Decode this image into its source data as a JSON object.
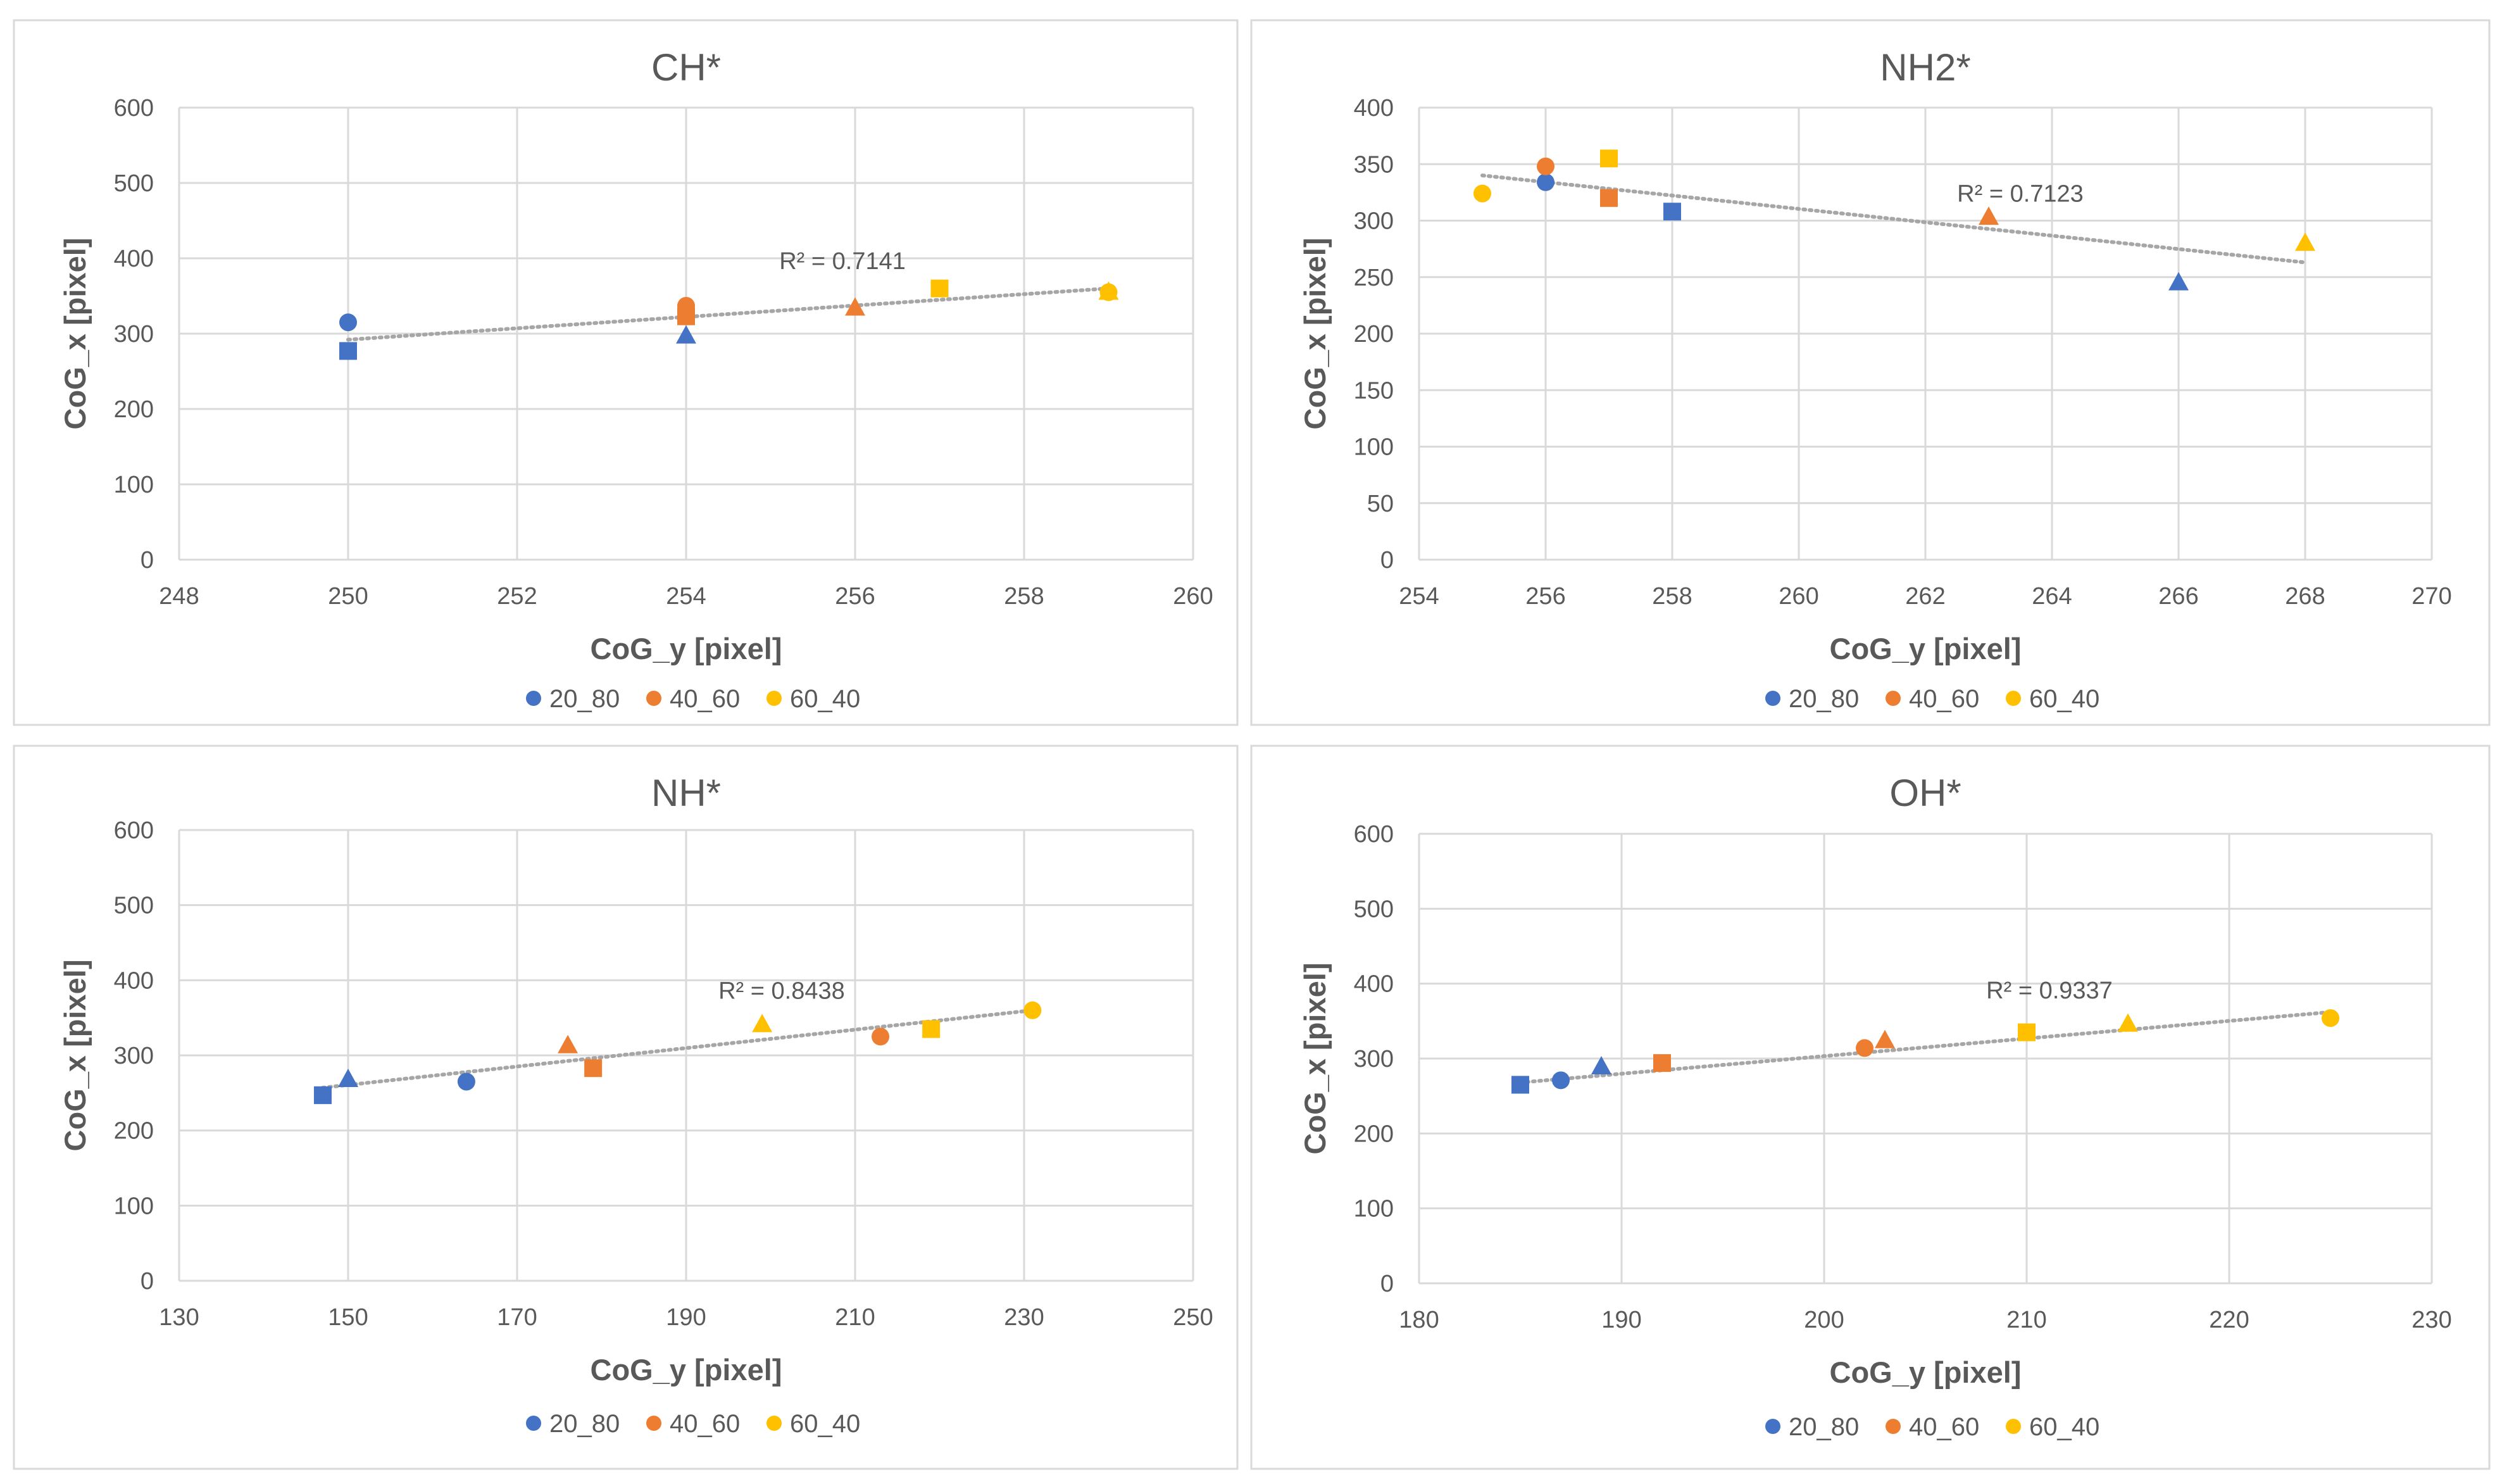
{
  "colors": {
    "20_80": "#4472C4",
    "40_60": "#ED7D31",
    "60_40": "#FFC000",
    "grid": "#D9D9D9",
    "trend": "#A6A6A6",
    "text": "#595959",
    "border": "#D9D9D9"
  },
  "legend": [
    "20_80",
    "40_60",
    "60_40"
  ],
  "chart_data": [
    {
      "type": "scatter",
      "title": "CH*",
      "xlabel": "CoG_y [pixel]",
      "ylabel": "CoG_x [pixel]",
      "xlim": [
        248,
        260
      ],
      "ylim": [
        0,
        600
      ],
      "xticks": [
        248,
        250,
        252,
        254,
        256,
        258,
        260
      ],
      "yticks": [
        0,
        100,
        200,
        300,
        400,
        500,
        600
      ],
      "r2": "R² = 0.7141",
      "trend": [
        [
          250,
          292
        ],
        [
          259,
          360
        ]
      ],
      "points": [
        {
          "series": "20_80",
          "marker": "circle",
          "x": 250,
          "y": 315
        },
        {
          "series": "20_80",
          "marker": "square",
          "x": 250,
          "y": 277
        },
        {
          "series": "20_80",
          "marker": "triangle",
          "x": 254,
          "y": 297
        },
        {
          "series": "40_60",
          "marker": "circle",
          "x": 254,
          "y": 337
        },
        {
          "series": "40_60",
          "marker": "square",
          "x": 254,
          "y": 323
        },
        {
          "series": "40_60",
          "marker": "triangle",
          "x": 256,
          "y": 334
        },
        {
          "series": "60_40",
          "marker": "square",
          "x": 257,
          "y": 360
        },
        {
          "series": "60_40",
          "marker": "circle",
          "x": 259,
          "y": 355
        },
        {
          "series": "60_40",
          "marker": "triangle",
          "x": 259,
          "y": 355
        }
      ]
    },
    {
      "type": "scatter",
      "title": "NH2*",
      "xlabel": "CoG_y [pixel]",
      "ylabel": "CoG_x [pixel]",
      "xlim": [
        254,
        270
      ],
      "ylim": [
        0,
        400
      ],
      "xticks": [
        254,
        256,
        258,
        260,
        262,
        264,
        266,
        268,
        270
      ],
      "yticks": [
        0,
        50,
        100,
        150,
        200,
        250,
        300,
        350,
        400
      ],
      "r2": "R² = 0.7123",
      "trend": [
        [
          255,
          340
        ],
        [
          268,
          263
        ]
      ],
      "points": [
        {
          "series": "20_80",
          "marker": "circle",
          "x": 256,
          "y": 334
        },
        {
          "series": "20_80",
          "marker": "square",
          "x": 258,
          "y": 308
        },
        {
          "series": "20_80",
          "marker": "triangle",
          "x": 266,
          "y": 245
        },
        {
          "series": "40_60",
          "marker": "circle",
          "x": 256,
          "y": 348
        },
        {
          "series": "40_60",
          "marker": "square",
          "x": 257,
          "y": 320
        },
        {
          "series": "40_60",
          "marker": "triangle",
          "x": 263,
          "y": 303
        },
        {
          "series": "60_40",
          "marker": "circle",
          "x": 255,
          "y": 324
        },
        {
          "series": "60_40",
          "marker": "square",
          "x": 257,
          "y": 355
        },
        {
          "series": "60_40",
          "marker": "triangle",
          "x": 268,
          "y": 280
        }
      ]
    },
    {
      "type": "scatter",
      "title": "NH*",
      "xlabel": "CoG_y [pixel]",
      "ylabel": "CoG_x [pixel]",
      "xlim": [
        130,
        250
      ],
      "ylim": [
        0,
        600
      ],
      "xticks": [
        130,
        150,
        170,
        190,
        210,
        230,
        250
      ],
      "yticks": [
        0,
        100,
        200,
        300,
        400,
        500,
        600
      ],
      "r2": "R² = 0.8438",
      "trend": [
        [
          147,
          257
        ],
        [
          231,
          360
        ]
      ],
      "points": [
        {
          "series": "20_80",
          "marker": "square",
          "x": 147,
          "y": 247
        },
        {
          "series": "20_80",
          "marker": "triangle",
          "x": 150,
          "y": 268
        },
        {
          "series": "20_80",
          "marker": "circle",
          "x": 164,
          "y": 265
        },
        {
          "series": "40_60",
          "marker": "triangle",
          "x": 176,
          "y": 313
        },
        {
          "series": "40_60",
          "marker": "square",
          "x": 179,
          "y": 283
        },
        {
          "series": "40_60",
          "marker": "circle",
          "x": 213,
          "y": 325
        },
        {
          "series": "60_40",
          "marker": "triangle",
          "x": 199,
          "y": 341
        },
        {
          "series": "60_40",
          "marker": "square",
          "x": 219,
          "y": 335
        },
        {
          "series": "60_40",
          "marker": "circle",
          "x": 231,
          "y": 360
        }
      ]
    },
    {
      "type": "scatter",
      "title": "OH*",
      "xlabel": "CoG_y [pixel]",
      "ylabel": "CoG_x [pixel]",
      "xlim": [
        180,
        230
      ],
      "ylim": [
        0,
        600
      ],
      "xticks": [
        180,
        190,
        200,
        210,
        220,
        230
      ],
      "yticks": [
        0,
        100,
        200,
        300,
        400,
        500,
        600
      ],
      "r2": "R² = 0.9337",
      "trend": [
        [
          185,
          268
        ],
        [
          225,
          362
        ]
      ],
      "points": [
        {
          "series": "20_80",
          "marker": "square",
          "x": 185,
          "y": 265
        },
        {
          "series": "20_80",
          "marker": "circle",
          "x": 187,
          "y": 271
        },
        {
          "series": "20_80",
          "marker": "triangle",
          "x": 189,
          "y": 289
        },
        {
          "series": "40_60",
          "marker": "square",
          "x": 192,
          "y": 294
        },
        {
          "series": "40_60",
          "marker": "circle",
          "x": 202,
          "y": 314
        },
        {
          "series": "40_60",
          "marker": "triangle",
          "x": 203,
          "y": 324
        },
        {
          "series": "60_40",
          "marker": "square",
          "x": 210,
          "y": 335
        },
        {
          "series": "60_40",
          "marker": "triangle",
          "x": 215,
          "y": 346
        },
        {
          "series": "60_40",
          "marker": "circle",
          "x": 225,
          "y": 354
        }
      ]
    }
  ]
}
